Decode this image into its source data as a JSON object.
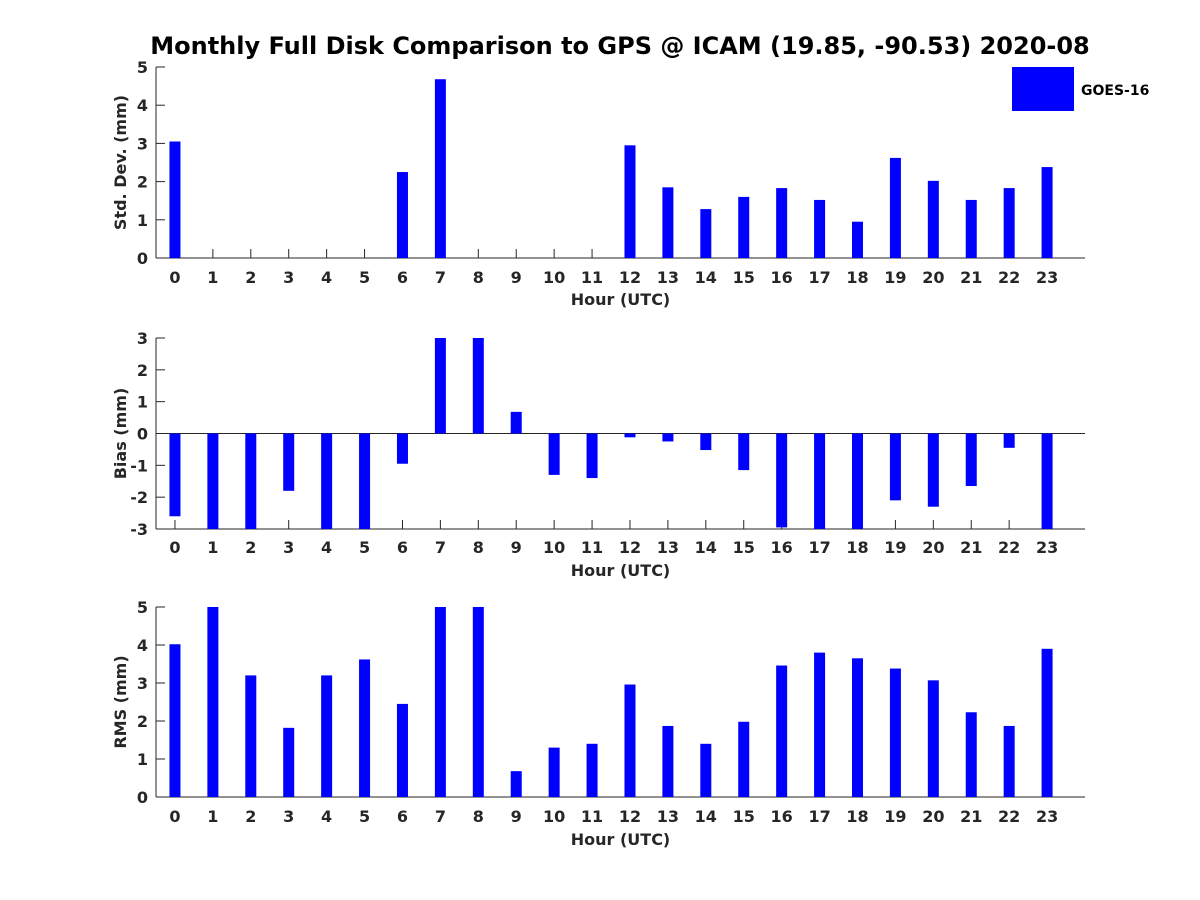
{
  "chart_data": [
    {
      "type": "bar",
      "title": "Monthly Full Disk Comparison to GPS @ ICAM (19.85, -90.53) 2020-08",
      "xlabel": "Hour (UTC)",
      "ylabel": "Std. Dev. (mm)",
      "ylim": [
        0,
        5
      ],
      "yticks": [
        "0",
        "1",
        "2",
        "3",
        "4",
        "5"
      ],
      "categories": [
        "0",
        "1",
        "2",
        "3",
        "4",
        "5",
        "6",
        "7",
        "8",
        "9",
        "10",
        "11",
        "12",
        "13",
        "14",
        "15",
        "16",
        "17",
        "18",
        "19",
        "20",
        "21",
        "22",
        "23"
      ],
      "series": [
        {
          "name": "GOES-16",
          "color": "#0000ff",
          "values": [
            3.05,
            null,
            null,
            null,
            null,
            null,
            2.25,
            4.68,
            null,
            null,
            null,
            null,
            2.95,
            1.85,
            1.28,
            1.6,
            1.83,
            1.52,
            0.95,
            2.62,
            2.02,
            1.52,
            1.83,
            2.38
          ]
        }
      ]
    },
    {
      "type": "bar",
      "xlabel": "Hour (UTC)",
      "ylabel": "Bias (mm)",
      "ylim": [
        -3,
        3
      ],
      "yticks": [
        "-3",
        "-2",
        "-1",
        "0",
        "1",
        "2",
        "3"
      ],
      "categories": [
        "0",
        "1",
        "2",
        "3",
        "4",
        "5",
        "6",
        "7",
        "8",
        "9",
        "10",
        "11",
        "12",
        "13",
        "14",
        "15",
        "16",
        "17",
        "18",
        "19",
        "20",
        "21",
        "22",
        "23"
      ],
      "series": [
        {
          "name": "GOES-16",
          "color": "#0000ff",
          "values": [
            -2.6,
            -3,
            -3,
            -1.8,
            -3,
            -3,
            -0.95,
            3,
            3,
            0.68,
            -1.3,
            -1.4,
            -0.12,
            -0.25,
            -0.52,
            -1.15,
            -2.95,
            -3,
            -3,
            -2.1,
            -2.3,
            -1.65,
            -0.45,
            -3
          ]
        }
      ]
    },
    {
      "type": "bar",
      "xlabel": "Hour (UTC)",
      "ylabel": "RMS (mm)",
      "ylim": [
        0,
        5
      ],
      "yticks": [
        "0",
        "1",
        "2",
        "3",
        "4",
        "5"
      ],
      "categories": [
        "0",
        "1",
        "2",
        "3",
        "4",
        "5",
        "6",
        "7",
        "8",
        "9",
        "10",
        "11",
        "12",
        "13",
        "14",
        "15",
        "16",
        "17",
        "18",
        "19",
        "20",
        "21",
        "22",
        "23"
      ],
      "series": [
        {
          "name": "GOES-16",
          "color": "#0000ff",
          "values": [
            4.02,
            5,
            3.2,
            1.82,
            3.2,
            3.62,
            2.45,
            5,
            5,
            0.68,
            1.3,
            1.4,
            2.96,
            1.87,
            1.4,
            1.98,
            3.46,
            3.8,
            3.65,
            3.38,
            3.07,
            2.23,
            1.87,
            3.9
          ]
        }
      ]
    }
  ],
  "legend": {
    "label": "GOES-16",
    "color": "#0000ff"
  }
}
